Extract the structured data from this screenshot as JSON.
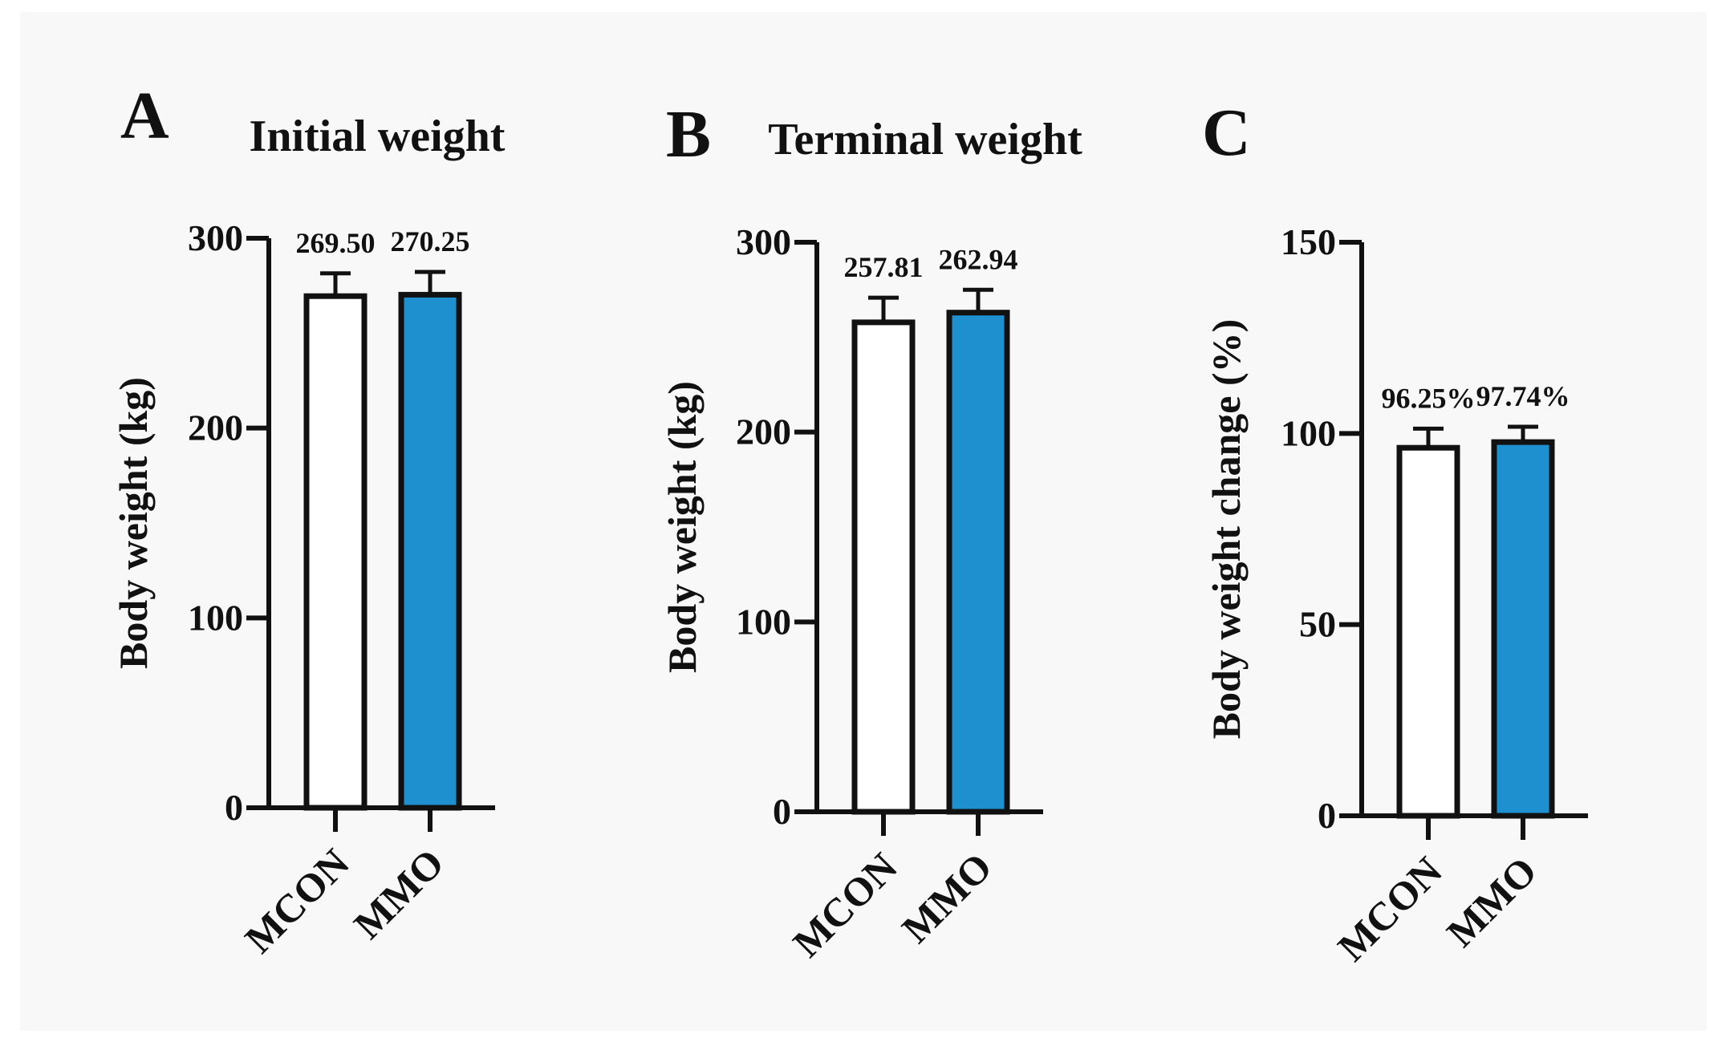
{
  "colors": {
    "control_bar": "#ffffff",
    "treatment_bar": "#1e8fcf",
    "ink": "#111111",
    "background": "#f8f8f8"
  },
  "chart_data": [
    {
      "type": "bar",
      "panel_letter": "A",
      "title": "Initial weight",
      "ylabel": "Body weight (kg)",
      "xlabel": "",
      "ylim": [
        0,
        300
      ],
      "yticks": [
        0,
        100,
        200,
        300
      ],
      "categories": [
        "MCON",
        "MMO"
      ],
      "values": [
        269.5,
        270.25
      ],
      "errors": [
        12,
        12
      ],
      "data_labels": [
        "269.50",
        "270.25"
      ],
      "bar_colors": [
        "#ffffff",
        "#1e8fcf"
      ],
      "grid": false,
      "legend": "none"
    },
    {
      "type": "bar",
      "panel_letter": "B",
      "title": "Terminal weight",
      "ylabel": "Body weight (kg)",
      "xlabel": "",
      "ylim": [
        0,
        300
      ],
      "yticks": [
        0,
        100,
        200,
        300
      ],
      "categories": [
        "MCON",
        "MMO"
      ],
      "values": [
        257.81,
        262.94
      ],
      "errors": [
        13,
        12
      ],
      "data_labels": [
        "257.81",
        "262.94"
      ],
      "bar_colors": [
        "#ffffff",
        "#1e8fcf"
      ],
      "grid": false,
      "legend": "none"
    },
    {
      "type": "bar",
      "panel_letter": "C",
      "title": "",
      "ylabel": "Body weight change (%)",
      "xlabel": "",
      "ylim": [
        0,
        150
      ],
      "yticks": [
        0,
        50,
        100,
        150
      ],
      "categories": [
        "MCON",
        "MMO"
      ],
      "values": [
        96.25,
        97.74
      ],
      "errors": [
        5,
        4
      ],
      "data_labels": [
        "96.25%",
        "97.74%"
      ],
      "bar_colors": [
        "#ffffff",
        "#1e8fcf"
      ],
      "grid": false,
      "legend": "none"
    }
  ]
}
